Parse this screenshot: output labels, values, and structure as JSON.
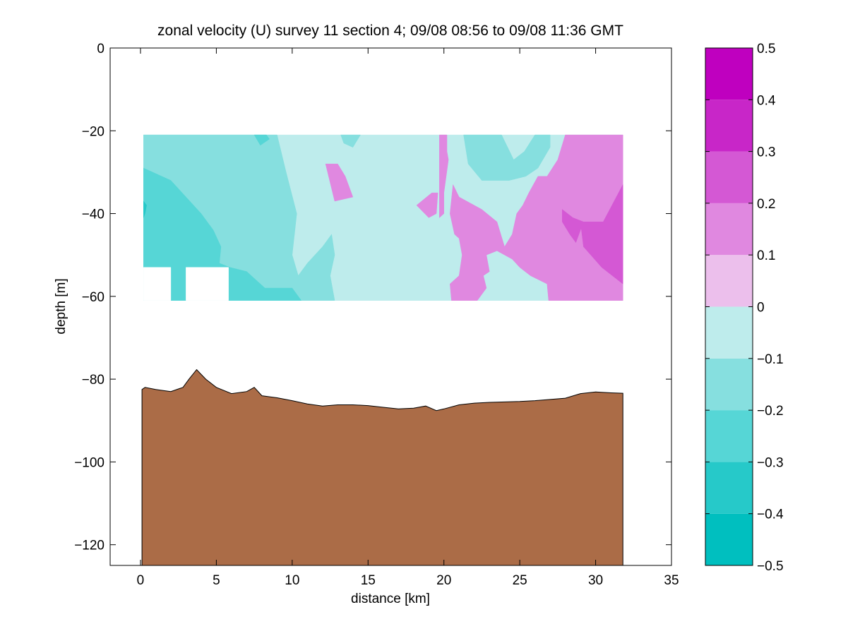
{
  "chart_data": {
    "type": "heatmap",
    "title": "zonal velocity (U) survey 11 section 4; 09/08 08:56 to 09/08 11:36 GMT",
    "xlabel": "distance [km]",
    "ylabel": "depth [m]",
    "xlim": [
      -2,
      35
    ],
    "ylim": [
      -125,
      0
    ],
    "x_ticks": [
      0,
      5,
      10,
      15,
      20,
      25,
      30,
      35
    ],
    "y_ticks": [
      0,
      -20,
      -40,
      -60,
      -80,
      -100,
      -120
    ],
    "x_tick_labels": [
      "0",
      "5",
      "10",
      "15",
      "20",
      "25",
      "30",
      "35"
    ],
    "y_tick_labels": [
      "0",
      "−20",
      "−40",
      "−60",
      "−80",
      "−100",
      "−120"
    ],
    "grid": false,
    "colormap": "cyan-magenta (discrete, 10 levels)",
    "colorbar": {
      "placement": "right",
      "range": [
        -0.5,
        0.5
      ],
      "levels": [
        -0.5,
        -0.4,
        -0.3,
        -0.2,
        -0.1,
        0,
        0.1,
        0.2,
        0.3,
        0.4,
        0.5
      ],
      "tick_labels": [
        "−0.5",
        "−0.4",
        "−0.3",
        "−0.2",
        "−0.1",
        "0",
        "0.1",
        "0.2",
        "0.3",
        "0.4",
        "0.5"
      ],
      "colors": [
        "#00bfbf",
        "#26c9c9",
        "#56d6d6",
        "#86dfdf",
        "#beecec",
        "#ecbfec",
        "#e088e0",
        "#d458d4",
        "#c826c8",
        "#bf00bf"
      ]
    },
    "data_extent": {
      "x": [
        0.2,
        31.8
      ],
      "depth": [
        -21,
        -61
      ]
    },
    "bottom_color": "#ab6c47",
    "bottom_depth": {
      "x": [
        0.1,
        0.3,
        1.0,
        2.0,
        2.8,
        3.2,
        3.7,
        4.3,
        5.0,
        6.0,
        7.0,
        7.5,
        8.0,
        9.0,
        10.0,
        11.0,
        12.0,
        13.0,
        14.0,
        15.0,
        16.0,
        17.0,
        18.0,
        18.8,
        19.5,
        20.0,
        21.0,
        22.0,
        23.0,
        24.0,
        25.0,
        26.0,
        27.0,
        28.0,
        29.0,
        30.0,
        31.0,
        31.8
      ],
      "depth": [
        -82.5,
        -82.0,
        -82.5,
        -83.0,
        -82.0,
        -80.0,
        -77.7,
        -80.0,
        -82.0,
        -83.5,
        -83.0,
        -82.0,
        -84.0,
        -84.5,
        -85.2,
        -86.0,
        -86.5,
        -86.2,
        -86.2,
        -86.4,
        -86.8,
        -87.2,
        -87.0,
        -86.5,
        -87.6,
        -87.2,
        -86.2,
        -85.8,
        -85.6,
        -85.5,
        -85.4,
        -85.2,
        -84.9,
        -84.6,
        -83.5,
        -83.1,
        -83.3,
        -83.4
      ]
    },
    "velocity_regions": [
      {
        "level": -0.1,
        "points": [
          [
            0.2,
            -21
          ],
          [
            31.8,
            -21
          ],
          [
            31.8,
            -61
          ],
          [
            0.2,
            -61
          ]
        ]
      },
      {
        "level": -0.2,
        "points": [
          [
            0.2,
            -21
          ],
          [
            4,
            -21
          ],
          [
            7,
            -21
          ],
          [
            9,
            -21
          ],
          [
            9.6,
            -30
          ],
          [
            10.3,
            -40
          ],
          [
            10,
            -50
          ],
          [
            10.4,
            -55
          ],
          [
            11,
            -52
          ],
          [
            12,
            -48
          ],
          [
            12.6,
            -45
          ],
          [
            12.8,
            -50
          ],
          [
            12.5,
            -55
          ],
          [
            12.8,
            -61
          ],
          [
            0.2,
            -61
          ]
        ]
      },
      {
        "level": -0.2,
        "points": [
          [
            13.2,
            -21
          ],
          [
            14.5,
            -21
          ],
          [
            14,
            -24
          ],
          [
            13.4,
            -23
          ]
        ]
      },
      {
        "level": -0.2,
        "points": [
          [
            21.3,
            -21
          ],
          [
            23.8,
            -21
          ],
          [
            24.6,
            -27
          ],
          [
            25.3,
            -25
          ],
          [
            26,
            -21
          ],
          [
            27,
            -21
          ],
          [
            27,
            -24
          ],
          [
            26.2,
            -29
          ],
          [
            25.4,
            -31
          ],
          [
            24.3,
            -32
          ],
          [
            22.5,
            -32
          ],
          [
            21.6,
            -28
          ]
        ]
      },
      {
        "level": -0.3,
        "points": [
          [
            0.2,
            -29
          ],
          [
            2,
            -32
          ],
          [
            3,
            -36
          ],
          [
            4,
            -40
          ],
          [
            4.8,
            -44
          ],
          [
            5.3,
            -48
          ],
          [
            5.2,
            -52
          ],
          [
            5.9,
            -53
          ],
          [
            7,
            -54
          ],
          [
            8.2,
            -58
          ],
          [
            10,
            -58
          ],
          [
            10.6,
            -61
          ],
          [
            0.2,
            -61
          ]
        ]
      },
      {
        "level": -0.3,
        "points": [
          [
            7.5,
            -21
          ],
          [
            8.3,
            -21
          ],
          [
            8.5,
            -22
          ],
          [
            7.9,
            -23.5
          ]
        ]
      },
      {
        "level": -0.4,
        "points": [
          [
            0.2,
            -37
          ],
          [
            0.4,
            -38
          ],
          [
            0.3,
            -40
          ],
          [
            0.2,
            -41
          ]
        ]
      },
      {
        "level": 0.1,
        "points": [
          [
            12.2,
            -28
          ],
          [
            13,
            -28
          ],
          [
            13.5,
            -31
          ],
          [
            14,
            -36
          ],
          [
            12.8,
            -37
          ]
        ]
      },
      {
        "level": 0.1,
        "points": [
          [
            18.2,
            -38
          ],
          [
            19.2,
            -35
          ],
          [
            19.6,
            -35
          ],
          [
            19.5,
            -40
          ],
          [
            19,
            -41
          ]
        ]
      },
      {
        "level": 0.1,
        "points": [
          [
            19.7,
            -21
          ],
          [
            20.2,
            -21
          ],
          [
            20.2,
            -25
          ],
          [
            20.3,
            -27
          ],
          [
            20,
            -35
          ],
          [
            20,
            -40
          ],
          [
            19.7,
            -41
          ]
        ]
      },
      {
        "level": 0.1,
        "points": [
          [
            20.6,
            -33
          ],
          [
            21,
            -36
          ],
          [
            22.5,
            -39
          ],
          [
            23.5,
            -42
          ],
          [
            24,
            -48
          ],
          [
            24.5,
            -45
          ],
          [
            24.8,
            -40
          ],
          [
            25.2,
            -38
          ],
          [
            25.6,
            -35
          ],
          [
            26.2,
            -31
          ],
          [
            26.8,
            -31
          ],
          [
            27.5,
            -27
          ],
          [
            28,
            -21
          ],
          [
            31.8,
            -21
          ],
          [
            31.8,
            -61
          ],
          [
            28,
            -61
          ],
          [
            26.9,
            -61
          ],
          [
            26.8,
            -57
          ],
          [
            25.7,
            -55
          ],
          [
            25,
            -53
          ],
          [
            24.5,
            -51
          ],
          [
            23.5,
            -49
          ],
          [
            22.8,
            -50
          ],
          [
            23,
            -54
          ],
          [
            22.6,
            -55
          ],
          [
            22.8,
            -58
          ],
          [
            22.2,
            -61
          ],
          [
            20.5,
            -61
          ],
          [
            20.4,
            -57
          ],
          [
            21,
            -55
          ],
          [
            21.2,
            -50
          ],
          [
            21,
            -46
          ],
          [
            20.7,
            -45
          ],
          [
            20.4,
            -40
          ]
        ]
      },
      {
        "level": 0.2,
        "points": [
          [
            29,
            -42
          ],
          [
            30.5,
            -42
          ],
          [
            31.8,
            -33
          ],
          [
            31.8,
            -57
          ],
          [
            30.4,
            -53
          ],
          [
            29.2,
            -48
          ]
        ]
      },
      {
        "level": 0.2,
        "points": [
          [
            27.8,
            -39
          ],
          [
            28.5,
            -41
          ],
          [
            29.2,
            -42
          ],
          [
            28.7,
            -47
          ],
          [
            28.3,
            -45
          ],
          [
            27.8,
            -42
          ]
        ]
      }
    ],
    "no_data_regions": [
      {
        "points": [
          [
            0.2,
            -53
          ],
          [
            2,
            -53
          ],
          [
            2,
            -61
          ],
          [
            0.2,
            -61
          ]
        ]
      },
      {
        "points": [
          [
            3,
            -53
          ],
          [
            5.8,
            -53
          ],
          [
            5.8,
            -61
          ],
          [
            3,
            -61
          ]
        ]
      }
    ]
  }
}
